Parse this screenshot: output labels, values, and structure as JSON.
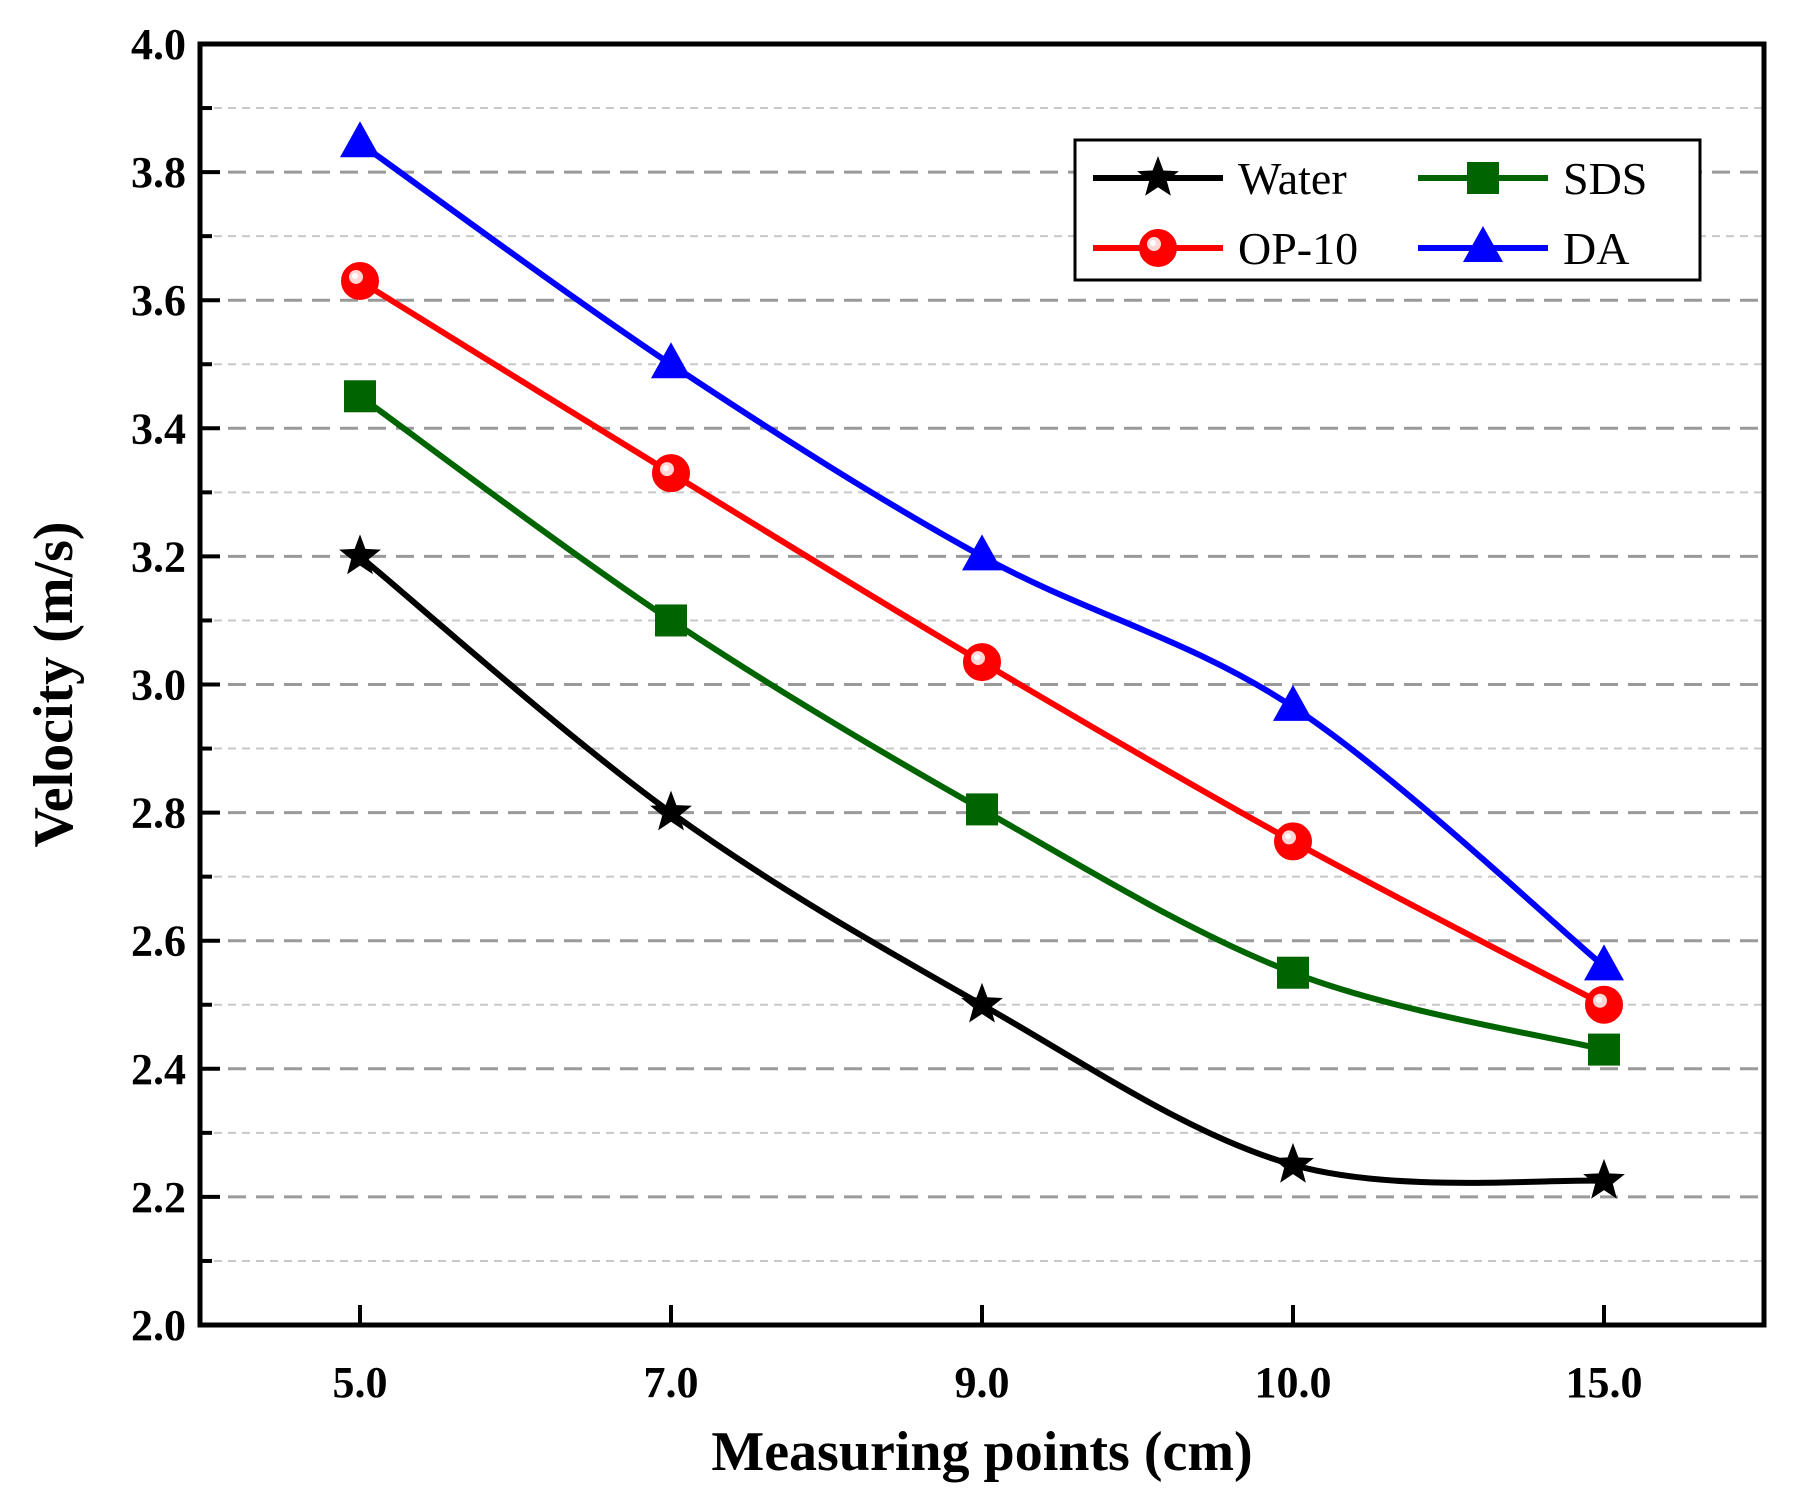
{
  "chart_data": {
    "type": "line",
    "title": "",
    "xlabel": "Measuring points (cm)",
    "ylabel": "Velocity (m/s)",
    "categories": [
      "5.0",
      "7.0",
      "9.0",
      "10.0",
      "15.0"
    ],
    "ylim": [
      2.0,
      4.0
    ],
    "yticks": [
      "2.0",
      "2.2",
      "2.4",
      "2.6",
      "2.8",
      "3.0",
      "3.2",
      "3.4",
      "3.6",
      "3.8",
      "4.0"
    ],
    "grid": true,
    "legend_position": "top-right",
    "series": [
      {
        "name": "Water",
        "marker": "star",
        "color": "#000000",
        "values": [
          3.2,
          2.8,
          2.5,
          2.25,
          2.225
        ]
      },
      {
        "name": "OP-10",
        "marker": "circle",
        "color": "#ff0000",
        "values": [
          3.63,
          3.33,
          3.035,
          2.755,
          2.5
        ]
      },
      {
        "name": "SDS",
        "marker": "square",
        "color": "#006400",
        "values": [
          3.45,
          3.1,
          2.805,
          2.55,
          2.43
        ]
      },
      {
        "name": "DA",
        "marker": "triangle",
        "color": "#0000ff",
        "values": [
          3.845,
          3.5,
          3.2,
          2.965,
          2.56
        ]
      }
    ]
  }
}
